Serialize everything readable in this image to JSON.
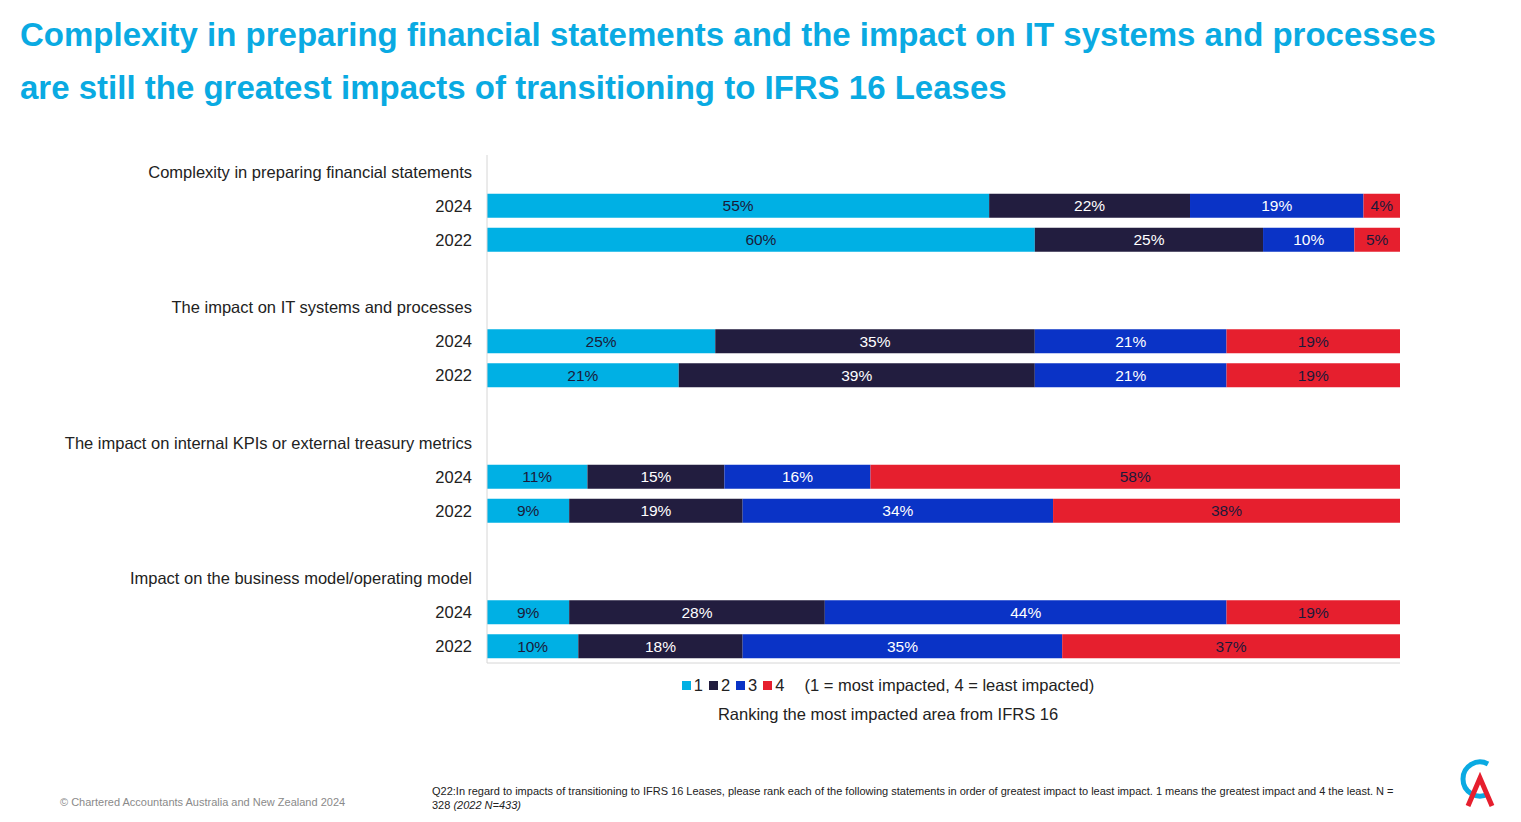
{
  "chart_data": {
    "type": "bar",
    "orientation": "horizontal",
    "stacked": true,
    "data_labels": true,
    "legend": "bottom",
    "tick_labels": "y",
    "title": "Complexity in preparing financial statements and the impact on IT systems and processes are still the greatest impacts of transitioning to IFRS 16 Leases",
    "groups": [
      "Complexity in preparing financial statements",
      "The impact on IT systems and processes",
      "The impact on internal KPIs or external treasury metrics",
      "Impact on the business model/operating model"
    ],
    "categories": [
      "2024",
      "2022",
      "2024",
      "2022",
      "2024",
      "2022",
      "2024",
      "2022"
    ],
    "xlim": [
      0,
      100
    ],
    "series": [
      {
        "name": "1",
        "color": "#00B0E4",
        "values": [
          55,
          60,
          25,
          21,
          11,
          9,
          9,
          10
        ],
        "value_labels": [
          "55%",
          "60%",
          "25%",
          "21%",
          "11%",
          "9%",
          "9%",
          "10%"
        ]
      },
      {
        "name": "2",
        "color": "#221D3F",
        "values": [
          22,
          25,
          35,
          39,
          15,
          19,
          28,
          18
        ],
        "value_labels": [
          "22%",
          "25%",
          "35%",
          "39%",
          "15%",
          "19%",
          "28%",
          "18%"
        ]
      },
      {
        "name": "3",
        "color": "#0A33C6",
        "values": [
          19,
          10,
          21,
          21,
          16,
          34,
          44,
          35
        ],
        "value_labels": [
          "19%",
          "10%",
          "21%",
          "21%",
          "16%",
          "34%",
          "44%",
          "35%"
        ]
      },
      {
        "name": "4",
        "color": "#E61F2E",
        "values": [
          4,
          5,
          19,
          19,
          58,
          38,
          19,
          37
        ],
        "value_labels": [
          "4%",
          "5%",
          "19%",
          "19%",
          "58%",
          "38%",
          "19%",
          "37%"
        ]
      }
    ],
    "legend_note": "(1 = most impacted, 4 = least impacted)",
    "xlabel": "Ranking the most impacted area from IFRS 16",
    "footnote": "Q22:In regard to impacts of transitioning to IFRS 16 Leases, please rank each of the following statements in order of greatest impact to least impact. 1 means the greatest impact and 4 the least. N = 328",
    "footnote_note": "(2022 N=433)",
    "copyright": "© Chartered Accountants Australia and New Zealand 2024"
  }
}
